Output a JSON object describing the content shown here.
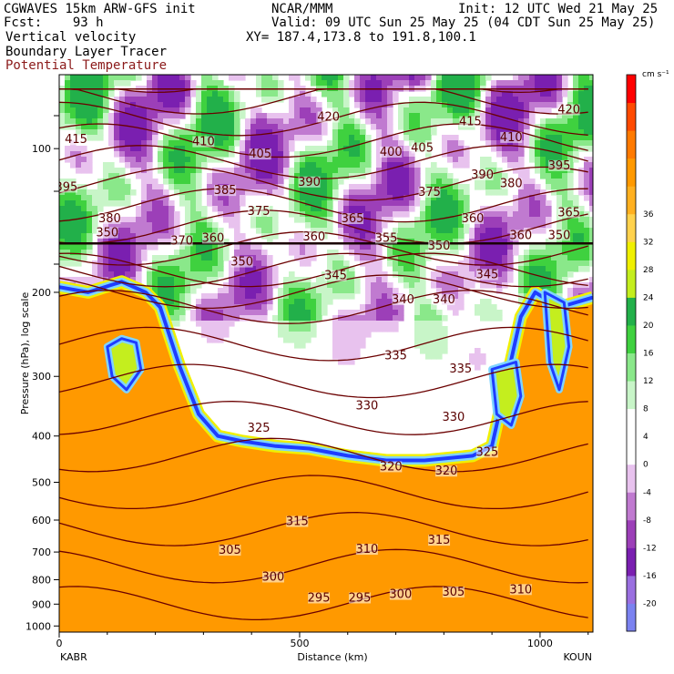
{
  "header": {
    "line1_left": "CGWAVES 15km ARW-GFS init",
    "line1_center": "NCAR/MMM",
    "line1_right": "Init: 12 UTC Wed 21 May 25",
    "line2_left": "Fcst:    93 h",
    "line2_right": "Valid: 09 UTC Sun 25 May 25 (04 CDT Sun 25 May 25)",
    "line3_left": "Vertical velocity",
    "line3_right": "XY= 187.4,173.8 to 191.8,100.1",
    "line4_left": "Boundary Layer Tracer",
    "line5_left": "Potential Temperature"
  },
  "colors": {
    "theta_contour": "#6b0000",
    "tracer_outer": "#1e3cff",
    "tracer_inner": "#7fd4ff",
    "tracer_fill": "#ff9900"
  },
  "chart_data": {
    "type": "heatmap",
    "title": "",
    "xlabel": "Distance (km)",
    "ylabel": "Pressure (hPa), log scale",
    "x_ticks": [
      0,
      500,
      1000
    ],
    "x_tick_labels": [
      "0",
      "500",
      "1000"
    ],
    "xlim": [
      0,
      1110
    ],
    "y_ticks": [
      100,
      200,
      300,
      400,
      500,
      600,
      700,
      800,
      900,
      1000
    ],
    "y_tick_labels": [
      "100",
      "200",
      "300",
      "400",
      "500",
      "600",
      "700",
      "800",
      "900",
      "1000"
    ],
    "endpoint_left": "KABR",
    "endpoint_right": "KOUN",
    "colorbar": {
      "unit": "cm s⁻¹",
      "levels": [
        -20,
        -16,
        -12,
        -8,
        -4,
        0,
        4,
        8,
        12,
        16,
        20,
        24,
        28,
        32,
        36
      ],
      "labels": [
        "-20",
        "-16",
        "-12",
        "-8",
        "-4",
        "0",
        "4",
        "8",
        "12",
        "16",
        "20",
        "24",
        "28",
        "32",
        "36"
      ],
      "colors": [
        "#7b82f0",
        "#9a6fe0",
        "#7a1fb0",
        "#9c3fb8",
        "#c07ad0",
        "#e8c2ee",
        "#ffffff",
        "#ffffff",
        "#c8f5c8",
        "#8ae88a",
        "#3fd13f",
        "#22b04a",
        "#c4ee1e",
        "#f0f000",
        "#ffd24d",
        "#ffb020",
        "#ff9900",
        "#ff7a00",
        "#ff4a00",
        "#ff0000"
      ]
    },
    "theta_labels": [
      {
        "text": "415",
        "x": 35,
        "p": 97
      },
      {
        "text": "410",
        "x": 300,
        "p": 98
      },
      {
        "text": "405",
        "x": 418,
        "p": 104
      },
      {
        "text": "420",
        "x": 560,
        "p": 87
      },
      {
        "text": "400",
        "x": 690,
        "p": 103
      },
      {
        "text": "405",
        "x": 755,
        "p": 101
      },
      {
        "text": "415",
        "x": 855,
        "p": 89
      },
      {
        "text": "410",
        "x": 940,
        "p": 96
      },
      {
        "text": "420",
        "x": 1060,
        "p": 84
      },
      {
        "text": "395",
        "x": 15,
        "p": 122
      },
      {
        "text": "385",
        "x": 345,
        "p": 124
      },
      {
        "text": "390",
        "x": 520,
        "p": 119
      },
      {
        "text": "375",
        "x": 415,
        "p": 137
      },
      {
        "text": "375",
        "x": 770,
        "p": 125
      },
      {
        "text": "390",
        "x": 880,
        "p": 115
      },
      {
        "text": "380",
        "x": 940,
        "p": 120
      },
      {
        "text": "395",
        "x": 1040,
        "p": 110
      },
      {
        "text": "380",
        "x": 105,
        "p": 142
      },
      {
        "text": "365",
        "x": 610,
        "p": 142
      },
      {
        "text": "360",
        "x": 860,
        "p": 142
      },
      {
        "text": "365",
        "x": 1060,
        "p": 138
      },
      {
        "text": "350",
        "x": 100,
        "p": 152
      },
      {
        "text": "370",
        "x": 255,
        "p": 158
      },
      {
        "text": "360",
        "x": 320,
        "p": 156
      },
      {
        "text": "360",
        "x": 530,
        "p": 155
      },
      {
        "text": "355",
        "x": 680,
        "p": 156
      },
      {
        "text": "350",
        "x": 790,
        "p": 162
      },
      {
        "text": "360",
        "x": 960,
        "p": 154
      },
      {
        "text": "350",
        "x": 1040,
        "p": 154
      },
      {
        "text": "350",
        "x": 380,
        "p": 175
      },
      {
        "text": "345",
        "x": 575,
        "p": 187
      },
      {
        "text": "345",
        "x": 890,
        "p": 186
      },
      {
        "text": "340",
        "x": 715,
        "p": 210
      },
      {
        "text": "340",
        "x": 800,
        "p": 210
      },
      {
        "text": "335",
        "x": 700,
        "p": 275
      },
      {
        "text": "335",
        "x": 835,
        "p": 293
      },
      {
        "text": "330",
        "x": 640,
        "p": 350
      },
      {
        "text": "330",
        "x": 820,
        "p": 370
      },
      {
        "text": "325",
        "x": 415,
        "p": 390
      },
      {
        "text": "325",
        "x": 890,
        "p": 438
      },
      {
        "text": "320",
        "x": 690,
        "p": 470
      },
      {
        "text": "320",
        "x": 805,
        "p": 480
      },
      {
        "text": "315",
        "x": 495,
        "p": 612
      },
      {
        "text": "310",
        "x": 640,
        "p": 700
      },
      {
        "text": "315",
        "x": 790,
        "p": 670
      },
      {
        "text": "305",
        "x": 355,
        "p": 703
      },
      {
        "text": "300",
        "x": 445,
        "p": 800
      },
      {
        "text": "295",
        "x": 540,
        "p": 885
      },
      {
        "text": "295",
        "x": 625,
        "p": 885
      },
      {
        "text": "300",
        "x": 710,
        "p": 870
      },
      {
        "text": "305",
        "x": 820,
        "p": 860
      },
      {
        "text": "310",
        "x": 960,
        "p": 850
      }
    ]
  }
}
